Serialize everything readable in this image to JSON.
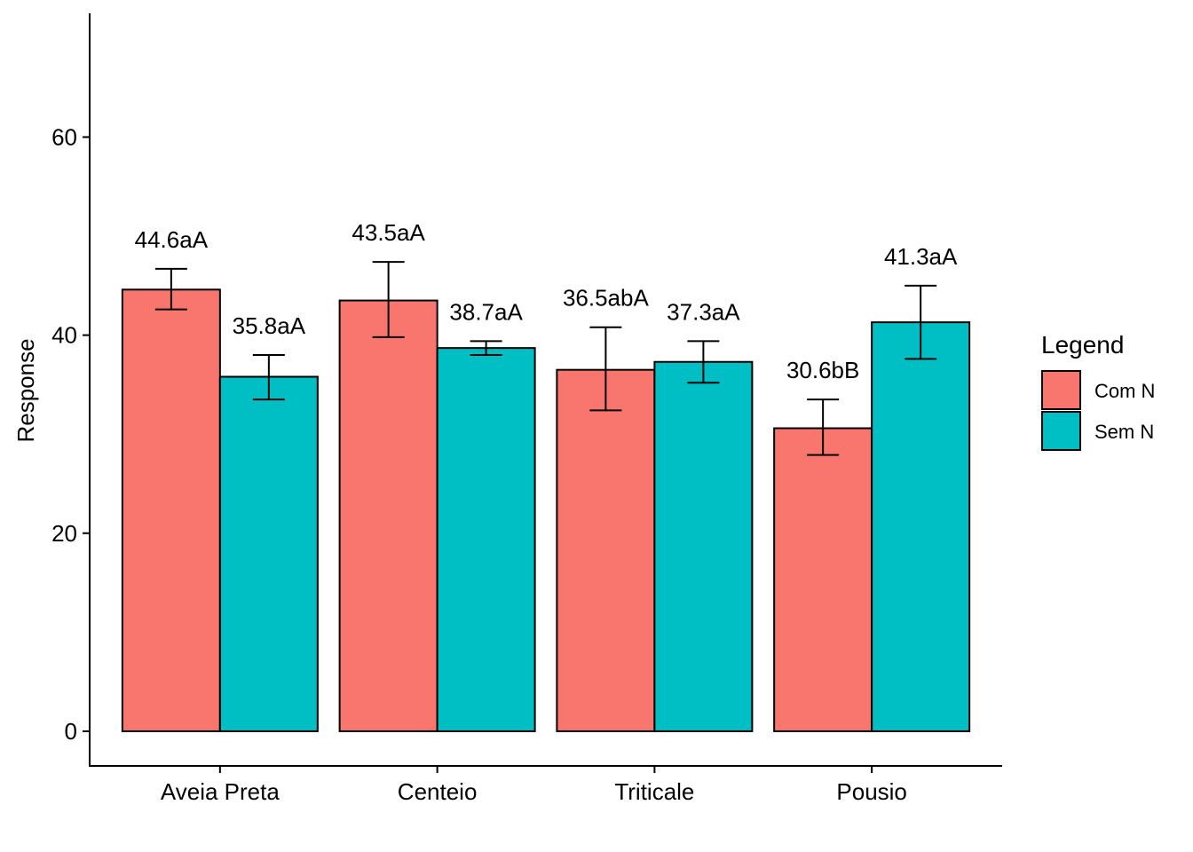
{
  "chart_data": {
    "type": "bar",
    "title": "",
    "xlabel": "",
    "ylabel": "Response",
    "ylim": [
      -3.5,
      72.5
    ],
    "yticks": [
      0,
      20,
      40,
      60
    ],
    "grid": false,
    "categories": [
      "Aveia Preta",
      "Centeio",
      "Triticale",
      "Pousio"
    ],
    "series": [
      {
        "name": "Com N",
        "color": "#F8766D",
        "values": [
          44.6,
          43.5,
          36.5,
          30.6
        ],
        "error_low": [
          42.6,
          39.8,
          32.4,
          27.9
        ],
        "error_high": [
          46.7,
          47.4,
          40.8,
          33.5
        ],
        "labels": [
          "44.6aA",
          "43.5aA",
          "36.5abA",
          "30.6bB"
        ]
      },
      {
        "name": "Sem N",
        "color": "#00BFC4",
        "values": [
          35.8,
          38.7,
          37.3,
          41.3
        ],
        "error_low": [
          33.5,
          38.0,
          35.2,
          37.6
        ],
        "error_high": [
          38.0,
          39.4,
          39.4,
          45.0
        ],
        "labels": [
          "35.8aA",
          "38.7aA",
          "37.3aA",
          "41.3aA"
        ]
      }
    ],
    "legend": {
      "title": "Legend",
      "position": "right"
    }
  }
}
